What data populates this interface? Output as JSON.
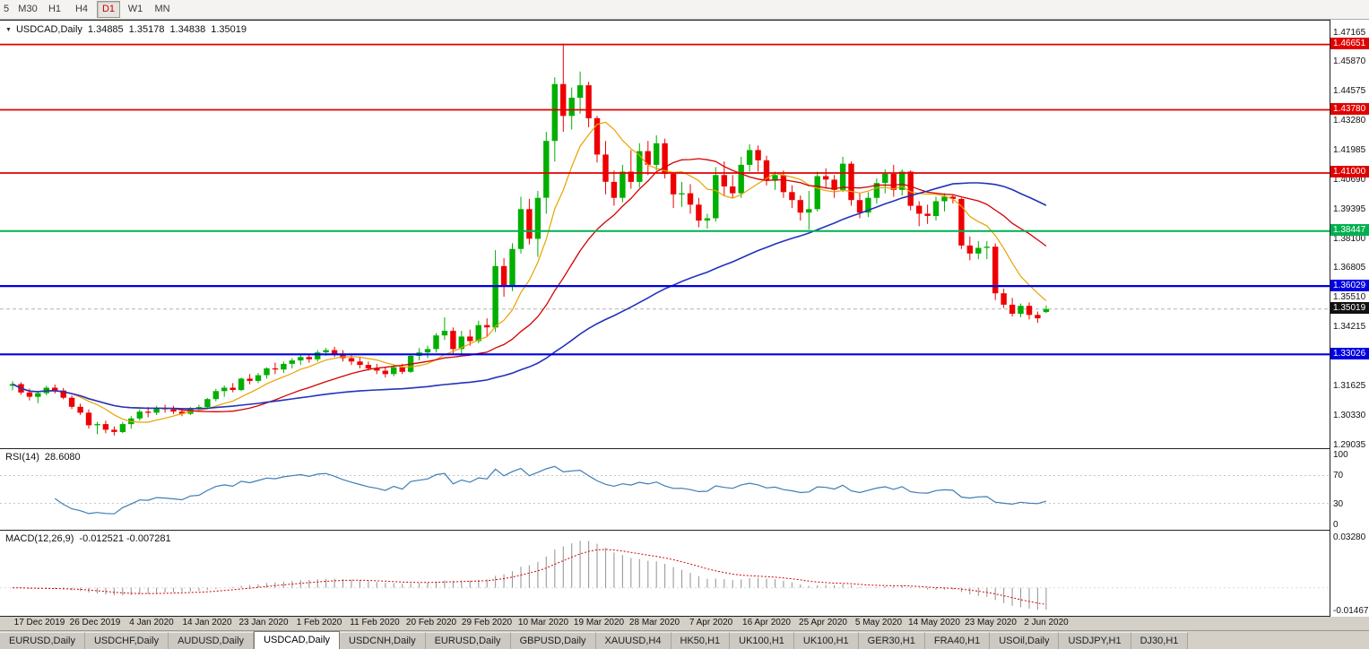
{
  "toolbar": {
    "periods": [
      "5",
      "M30",
      "H1",
      "H4",
      "D1",
      "W1",
      "MN"
    ],
    "active": "D1"
  },
  "chart": {
    "title": {
      "icon": "▼",
      "symbol": "USDCAD,Daily",
      "open": "1.34885",
      "high": "1.35178",
      "low": "1.34838",
      "close": "1.35019"
    }
  },
  "chart_data": {
    "type": "candlestick",
    "symbol": "USDCAD",
    "timeframe": "Daily",
    "colors": {
      "up": "#00AF00",
      "down": "#EE0000",
      "bid_line": "#b4b4b4"
    },
    "price_axis": {
      "max": 1.477,
      "min": 1.289,
      "labels": [
        1.47165,
        1.4587,
        1.44575,
        1.4328,
        1.41985,
        1.4069,
        1.39395,
        1.381,
        1.36805,
        1.3551,
        1.34215,
        1.3292,
        1.31625,
        1.3033,
        1.29035
      ]
    },
    "current": {
      "price": 1.35019,
      "label": "1.35019",
      "color": "#111111"
    },
    "levels": [
      {
        "price": 1.46651,
        "label": "1.46651",
        "color": "#E00000",
        "width": 1.8,
        "type": "resistance"
      },
      {
        "price": 1.4378,
        "label": "1.43780",
        "color": "#E00000",
        "width": 1.8,
        "type": "resistance"
      },
      {
        "price": 1.41,
        "label": "1.41000",
        "color": "#E00000",
        "width": 1.8,
        "type": "resistance"
      },
      {
        "price": 1.38447,
        "label": "1.38447",
        "color": "#00B050",
        "width": 2.0,
        "type": "support"
      },
      {
        "price": 1.36029,
        "label": "1.36029",
        "color": "#0000E0",
        "width": 2.2,
        "type": "support"
      },
      {
        "price": 1.33026,
        "label": "1.33026",
        "color": "#0000E0",
        "width": 2.2,
        "type": "support"
      }
    ],
    "moving_averages": [
      {
        "period": 8,
        "color": "#E8A200",
        "width": 1.2
      },
      {
        "period": 20,
        "color": "#D40000",
        "width": 1.3
      },
      {
        "period": 55,
        "color": "#2233BB",
        "width": 1.6
      }
    ],
    "x_labels": [
      "17 Dec 2019",
      "26 Dec 2019",
      "4 Jan 2020",
      "14 Jan 2020",
      "23 Jan 2020",
      "1 Feb 2020",
      "11 Feb 2020",
      "20 Feb 2020",
      "29 Feb 2020",
      "10 Mar 2020",
      "19 Mar 2020",
      "28 Mar 2020",
      "7 Apr 2020",
      "16 Apr 2020",
      "25 Apr 2020",
      "5 May 2020",
      "14 May 2020",
      "23 May 2020",
      "2 Jun 2020"
    ],
    "candles": [
      [
        1.3165,
        1.3185,
        1.3145,
        1.3172
      ],
      [
        1.3172,
        1.318,
        1.3125,
        1.3135
      ],
      [
        1.3135,
        1.3152,
        1.31,
        1.3116
      ],
      [
        1.3116,
        1.3142,
        1.3088,
        1.3132
      ],
      [
        1.3132,
        1.3165,
        1.3122,
        1.3156
      ],
      [
        1.3156,
        1.317,
        1.3131,
        1.3144
      ],
      [
        1.3144,
        1.3155,
        1.3105,
        1.3112
      ],
      [
        1.3112,
        1.3122,
        1.3062,
        1.3072
      ],
      [
        1.3072,
        1.3086,
        1.3036,
        1.3046
      ],
      [
        1.3046,
        1.3061,
        1.2976,
        1.2991
      ],
      [
        1.2991,
        1.3006,
        1.2952,
        1.2996
      ],
      [
        1.2996,
        1.3011,
        1.2956,
        1.2971
      ],
      [
        1.2971,
        1.2986,
        1.2946,
        1.2961
      ],
      [
        1.2961,
        1.3006,
        1.2956,
        1.2996
      ],
      [
        1.2996,
        1.3031,
        1.2976,
        1.3021
      ],
      [
        1.3021,
        1.3061,
        1.3011,
        1.3051
      ],
      [
        1.3051,
        1.3071,
        1.3026,
        1.3046
      ],
      [
        1.3046,
        1.3076,
        1.3036,
        1.3066
      ],
      [
        1.3066,
        1.3081,
        1.3046,
        1.3061
      ],
      [
        1.3061,
        1.3076,
        1.3041,
        1.3051
      ],
      [
        1.3051,
        1.3066,
        1.3031,
        1.3041
      ],
      [
        1.3041,
        1.3071,
        1.3036,
        1.3066
      ],
      [
        1.3066,
        1.3081,
        1.3051,
        1.3071
      ],
      [
        1.3071,
        1.3111,
        1.3061,
        1.3106
      ],
      [
        1.3106,
        1.3151,
        1.3096,
        1.3141
      ],
      [
        1.3141,
        1.3166,
        1.3116,
        1.3156
      ],
      [
        1.3156,
        1.3176,
        1.3136,
        1.3146
      ],
      [
        1.3146,
        1.3201,
        1.3141,
        1.3196
      ],
      [
        1.3196,
        1.3216,
        1.3171,
        1.3186
      ],
      [
        1.3186,
        1.3221,
        1.3176,
        1.3211
      ],
      [
        1.3211,
        1.3246,
        1.3196,
        1.3241
      ],
      [
        1.3241,
        1.3266,
        1.3216,
        1.3236
      ],
      [
        1.3236,
        1.3271,
        1.3221,
        1.3261
      ],
      [
        1.3261,
        1.3286,
        1.3241,
        1.3276
      ],
      [
        1.3276,
        1.3301,
        1.3256,
        1.3291
      ],
      [
        1.3291,
        1.3306,
        1.3266,
        1.3281
      ],
      [
        1.3281,
        1.3321,
        1.3271,
        1.3311
      ],
      [
        1.3311,
        1.3331,
        1.3296,
        1.3321
      ],
      [
        1.3321,
        1.3336,
        1.3291,
        1.3306
      ],
      [
        1.3306,
        1.3321,
        1.3271,
        1.3286
      ],
      [
        1.3286,
        1.3301,
        1.3256,
        1.3271
      ],
      [
        1.3271,
        1.3291,
        1.3241,
        1.3256
      ],
      [
        1.3256,
        1.3271,
        1.3231,
        1.3241
      ],
      [
        1.3241,
        1.3261,
        1.3216,
        1.3231
      ],
      [
        1.3231,
        1.3246,
        1.3201,
        1.3216
      ],
      [
        1.3216,
        1.3256,
        1.3206,
        1.3246
      ],
      [
        1.3246,
        1.3261,
        1.3216,
        1.3226
      ],
      [
        1.3226,
        1.3306,
        1.3221,
        1.3296
      ],
      [
        1.3296,
        1.3331,
        1.3276,
        1.3311
      ],
      [
        1.3311,
        1.3341,
        1.3286,
        1.3326
      ],
      [
        1.3326,
        1.3396,
        1.3311,
        1.3386
      ],
      [
        1.3386,
        1.3466,
        1.3366,
        1.3406
      ],
      [
        1.3406,
        1.3421,
        1.3306,
        1.3326
      ],
      [
        1.3326,
        1.3406,
        1.3301,
        1.3381
      ],
      [
        1.3381,
        1.3411,
        1.3341,
        1.3361
      ],
      [
        1.3361,
        1.3451,
        1.3351,
        1.3431
      ],
      [
        1.3431,
        1.3461,
        1.3381,
        1.3421
      ],
      [
        1.3421,
        1.3761,
        1.3401,
        1.3691
      ],
      [
        1.3691,
        1.3726,
        1.3556,
        1.3606
      ],
      [
        1.3606,
        1.3791,
        1.3581,
        1.3766
      ],
      [
        1.3766,
        1.3996,
        1.3746,
        1.3941
      ],
      [
        1.3941,
        1.3986,
        1.3786,
        1.3811
      ],
      [
        1.3811,
        1.4021,
        1.3731,
        1.3991
      ],
      [
        1.3991,
        1.4281,
        1.3921,
        1.4241
      ],
      [
        1.4241,
        1.4521,
        1.4151,
        1.4491
      ],
      [
        1.4491,
        1.4669,
        1.4281,
        1.4351
      ],
      [
        1.4351,
        1.4476,
        1.4291,
        1.4431
      ],
      [
        1.4431,
        1.4546,
        1.4361,
        1.4486
      ],
      [
        1.4486,
        1.4501,
        1.4301,
        1.4341
      ],
      [
        1.4341,
        1.4351,
        1.4146,
        1.4181
      ],
      [
        1.4181,
        1.4241,
        1.4006,
        1.4061
      ],
      [
        1.4061,
        1.4111,
        1.3956,
        1.3991
      ],
      [
        1.3991,
        1.4136,
        1.3971,
        1.4106
      ],
      [
        1.4106,
        1.4201,
        1.4031,
        1.4061
      ],
      [
        1.4061,
        1.4231,
        1.4036,
        1.4196
      ],
      [
        1.4196,
        1.4241,
        1.4091,
        1.4136
      ],
      [
        1.4136,
        1.4266,
        1.4111,
        1.4231
      ],
      [
        1.4231,
        1.4251,
        1.4076,
        1.4096
      ],
      [
        1.4096,
        1.4101,
        1.3946,
        1.4006
      ],
      [
        1.4006,
        1.4061,
        1.3951,
        1.4011
      ],
      [
        1.4011,
        1.4051,
        1.3921,
        1.3961
      ],
      [
        1.3961,
        1.3991,
        1.3861,
        1.3891
      ],
      [
        1.3891,
        1.3921,
        1.3856,
        1.3901
      ],
      [
        1.3901,
        1.4126,
        1.3886,
        1.4091
      ],
      [
        1.4091,
        1.4151,
        1.4001,
        1.4041
      ],
      [
        1.4041,
        1.4091,
        1.3991,
        1.4011
      ],
      [
        1.4011,
        1.4171,
        1.3991,
        1.4136
      ],
      [
        1.4136,
        1.4226,
        1.4106,
        1.4201
      ],
      [
        1.4201,
        1.4221,
        1.4106,
        1.4156
      ],
      [
        1.4156,
        1.4176,
        1.4046,
        1.4066
      ],
      [
        1.4066,
        1.4106,
        1.4026,
        1.4091
      ],
      [
        1.4091,
        1.4111,
        1.3991,
        1.4016
      ],
      [
        1.4016,
        1.4046,
        1.3946,
        1.3981
      ],
      [
        1.3981,
        1.4001,
        1.3891,
        1.3926
      ],
      [
        1.3926,
        1.4021,
        1.3851,
        1.3941
      ],
      [
        1.3941,
        1.4106,
        1.3931,
        1.4086
      ],
      [
        1.4086,
        1.4121,
        1.4036,
        1.4071
      ],
      [
        1.4071,
        1.4091,
        1.3991,
        1.4026
      ],
      [
        1.4026,
        1.4171,
        1.4016,
        1.4141
      ],
      [
        1.4141,
        1.4151,
        1.3956,
        1.3981
      ],
      [
        1.3981,
        1.4011,
        1.3901,
        1.3926
      ],
      [
        1.3926,
        1.4016,
        1.3906,
        1.3991
      ],
      [
        1.3991,
        1.4076,
        1.3966,
        1.4056
      ],
      [
        1.4056,
        1.4116,
        1.4011,
        1.4096
      ],
      [
        1.4096,
        1.4136,
        1.3996,
        1.4026
      ],
      [
        1.4026,
        1.4116,
        1.4001,
        1.4106
      ],
      [
        1.4106,
        1.4111,
        1.3936,
        1.3956
      ],
      [
        1.3956,
        1.3976,
        1.3866,
        1.3921
      ],
      [
        1.3921,
        1.3961,
        1.3876,
        1.3911
      ],
      [
        1.3911,
        1.3996,
        1.3891,
        1.3976
      ],
      [
        1.3976,
        1.4011,
        1.3931,
        1.3996
      ],
      [
        1.3996,
        1.4006,
        1.3966,
        1.3986
      ],
      [
        1.3986,
        1.3991,
        1.3766,
        1.3781
      ],
      [
        1.3781,
        1.3821,
        1.3716,
        1.3746
      ],
      [
        1.3746,
        1.3801,
        1.3721,
        1.3771
      ],
      [
        1.3771,
        1.3801,
        1.3721,
        1.3776
      ],
      [
        1.3776,
        1.3791,
        1.3541,
        1.3571
      ],
      [
        1.3571,
        1.3591,
        1.3506,
        1.3521
      ],
      [
        1.3521,
        1.3551,
        1.3469,
        1.3481
      ],
      [
        1.3481,
        1.3526,
        1.3466,
        1.3516
      ],
      [
        1.3516,
        1.3531,
        1.3456,
        1.3476
      ],
      [
        1.3476,
        1.3491,
        1.3441,
        1.3461
      ],
      [
        1.34885,
        1.35178,
        1.34838,
        1.35019
      ]
    ],
    "rsi": {
      "label": "RSI(14)",
      "value_text": "28.6080",
      "period": 14,
      "color": "#3F7CB6",
      "axis_levels": [
        100,
        70,
        30,
        0
      ],
      "dotted_levels": [
        70,
        30
      ]
    },
    "macd": {
      "label": "MACD(12,26,9)",
      "values_text": "-0.012521 -0.007281",
      "fast": 12,
      "slow": 26,
      "signal": 9,
      "hist_color": "#9a9a9a",
      "signal_color": "#D40000",
      "scale_max": 0.0366,
      "scale_min": -0.018,
      "axis_labels": [
        {
          "text": "0.03280",
          "value": 0.0328
        },
        {
          "text": "-0.01467",
          "value": -0.01467
        }
      ]
    }
  },
  "tabs": {
    "items": [
      "EURUSD,Daily",
      "USDCHF,Daily",
      "AUDUSD,Daily",
      "USDCAD,Daily",
      "USDCNH,Daily",
      "EURUSD,Daily",
      "GBPUSD,Daily",
      "XAUUSD,H4",
      "HK50,H1",
      "UK100,H1",
      "UK100,H1",
      "GER30,H1",
      "FRA40,H1",
      "USOil,Daily",
      "USDJPY,H1",
      "DJ30,H1"
    ],
    "active_index": 3,
    "active": "USDCAD,Daily"
  }
}
